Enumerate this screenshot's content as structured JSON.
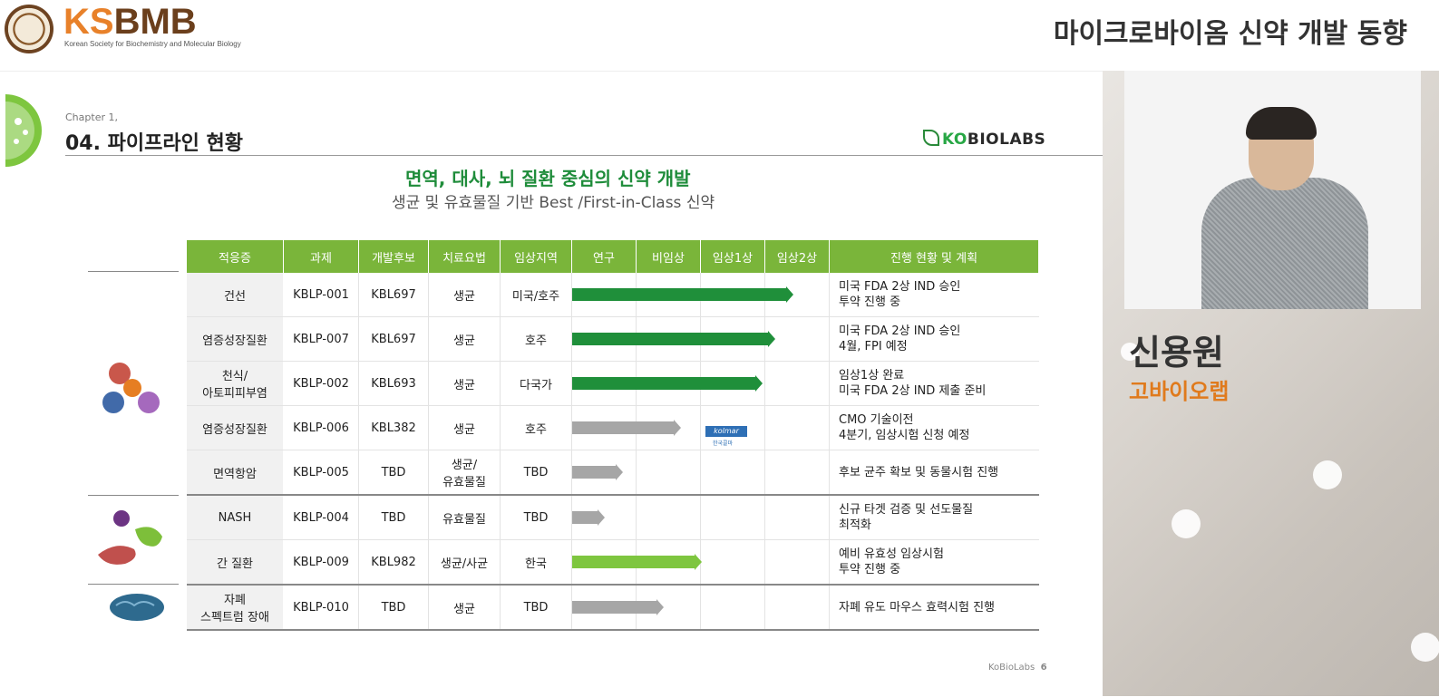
{
  "header": {
    "brand_ks": "KS",
    "brand_bmb": "BMB",
    "brand_sub": "Korean Society for Biochemistry and Molecular Biology",
    "topic": "마이크로바이옴 신약 개발 동향"
  },
  "slide": {
    "chapter": "Chapter 1,",
    "title": "04. 파이프라인 현황",
    "logo_ko": "KO",
    "logo_rest": "BIOLABS",
    "headline": "면역, 대사, 뇌 질환 중심의 신약 개발",
    "subheadline": "생균 및 유효물질 기반 Best /First-in-Class 신약",
    "page_footer": "KoBioLabs",
    "page_number": "6"
  },
  "table": {
    "headers": [
      "적응증",
      "과제",
      "개발후보",
      "치료요법",
      "임상지역",
      "연구",
      "비임상",
      "임상1상",
      "임상2상",
      "진행 현황 및 계획"
    ],
    "rows": [
      {
        "indication": "건선",
        "project": "KBLP-001",
        "candidate": "KBL697",
        "therapy": "생균",
        "region": "미국/호주",
        "progress": 0.87,
        "bar": "dg",
        "status1": "미국 FDA 2상 IND 승인",
        "status2": "투약 진행 중"
      },
      {
        "indication": "염증성장질환",
        "project": "KBLP-007",
        "candidate": "KBL697",
        "therapy": "생균",
        "region": "호주",
        "progress": 0.8,
        "bar": "dg",
        "status1": "미국 FDA 2상 IND 승인",
        "status2": "4월, FPI 예정"
      },
      {
        "indication": "천식/\n아토피피부염",
        "project": "KBLP-002",
        "candidate": "KBL693",
        "therapy": "생균",
        "region": "다국가",
        "progress": 0.75,
        "bar": "dg",
        "status1": "임상1상 완료",
        "status2": "미국 FDA 2상 IND 제출 준비"
      },
      {
        "indication": "염증성장질환",
        "project": "KBLP-006",
        "candidate": "KBL382",
        "therapy": "생균",
        "region": "호주",
        "progress": 0.43,
        "bar": "gr",
        "status1": "CMO 기술이전",
        "status2": "4분기, 임상시험 신청 예정"
      },
      {
        "indication": "면역항암",
        "project": "KBLP-005",
        "candidate": "TBD",
        "therapy": "생균/\n유효물질",
        "region": "TBD",
        "progress": 0.2,
        "bar": "gr",
        "status1": "후보 균주 확보 및 동물시험 진행",
        "status2": ""
      },
      {
        "indication": "NASH",
        "project": "KBLP-004",
        "candidate": "TBD",
        "therapy": "유효물질",
        "region": "TBD",
        "progress": 0.13,
        "bar": "gr",
        "status1": "신규 타겟 검증 및 선도물질",
        "status2": "최적화"
      },
      {
        "indication": "간 질환",
        "project": "KBLP-009",
        "candidate": "KBL982",
        "therapy": "생균/사균",
        "region": "한국",
        "progress": 0.51,
        "bar": "lg",
        "status1": "예비 유효성 임상시험",
        "status2": "투약 진행 중"
      },
      {
        "indication": "자폐\n스펙트럼 장애",
        "project": "KBLP-010",
        "candidate": "TBD",
        "therapy": "생균",
        "region": "TBD",
        "progress": 0.36,
        "bar": "gr",
        "status1": "자폐 유도 마우스 효력시험 진행",
        "status2": ""
      }
    ],
    "partner_logo_text": "kolmar",
    "partner_logo_sub": "한국콜마"
  },
  "speaker": {
    "name": "신용원",
    "org": "고바이오랩"
  },
  "colors": {
    "header_green": "#7ab53a",
    "bar_dark_green": "#1f8f3a",
    "bar_gray": "#a6a6a6",
    "bar_light_green": "#7ec63f",
    "accent_orange": "#e07a1c"
  }
}
